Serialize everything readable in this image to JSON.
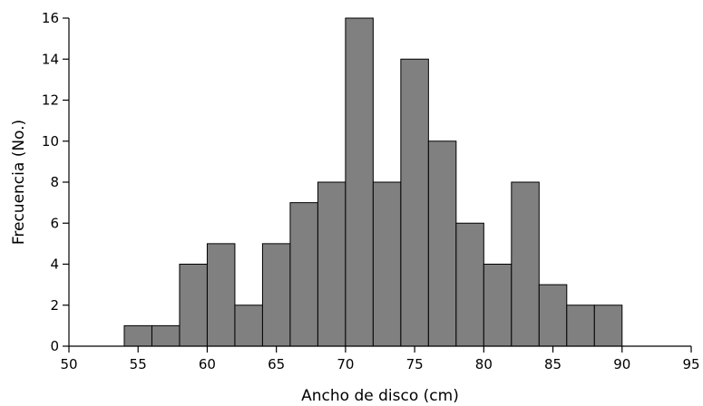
{
  "chart_data": {
    "type": "bar",
    "title": "",
    "xlabel": "Ancho de disco (cm)",
    "ylabel": "Frecuencia (No.)",
    "xlim": [
      50,
      95
    ],
    "ylim": [
      0,
      16
    ],
    "xticks": [
      50,
      55,
      60,
      65,
      70,
      75,
      80,
      85,
      90,
      95
    ],
    "yticks": [
      0,
      2,
      4,
      6,
      8,
      10,
      12,
      14,
      16
    ],
    "grid": false,
    "bar_color": "#808080",
    "bins": [
      {
        "start": 54,
        "end": 56,
        "value": 1
      },
      {
        "start": 56,
        "end": 58,
        "value": 1
      },
      {
        "start": 58,
        "end": 60,
        "value": 4
      },
      {
        "start": 60,
        "end": 62,
        "value": 5
      },
      {
        "start": 62,
        "end": 64,
        "value": 2
      },
      {
        "start": 64,
        "end": 66,
        "value": 5
      },
      {
        "start": 66,
        "end": 68,
        "value": 7
      },
      {
        "start": 68,
        "end": 70,
        "value": 8
      },
      {
        "start": 70,
        "end": 72,
        "value": 16
      },
      {
        "start": 72,
        "end": 74,
        "value": 8
      },
      {
        "start": 74,
        "end": 76,
        "value": 14
      },
      {
        "start": 76,
        "end": 78,
        "value": 10
      },
      {
        "start": 78,
        "end": 80,
        "value": 6
      },
      {
        "start": 80,
        "end": 82,
        "value": 4
      },
      {
        "start": 82,
        "end": 84,
        "value": 8
      },
      {
        "start": 84,
        "end": 86,
        "value": 3
      },
      {
        "start": 86,
        "end": 88,
        "value": 2
      },
      {
        "start": 88,
        "end": 90,
        "value": 2
      }
    ]
  }
}
